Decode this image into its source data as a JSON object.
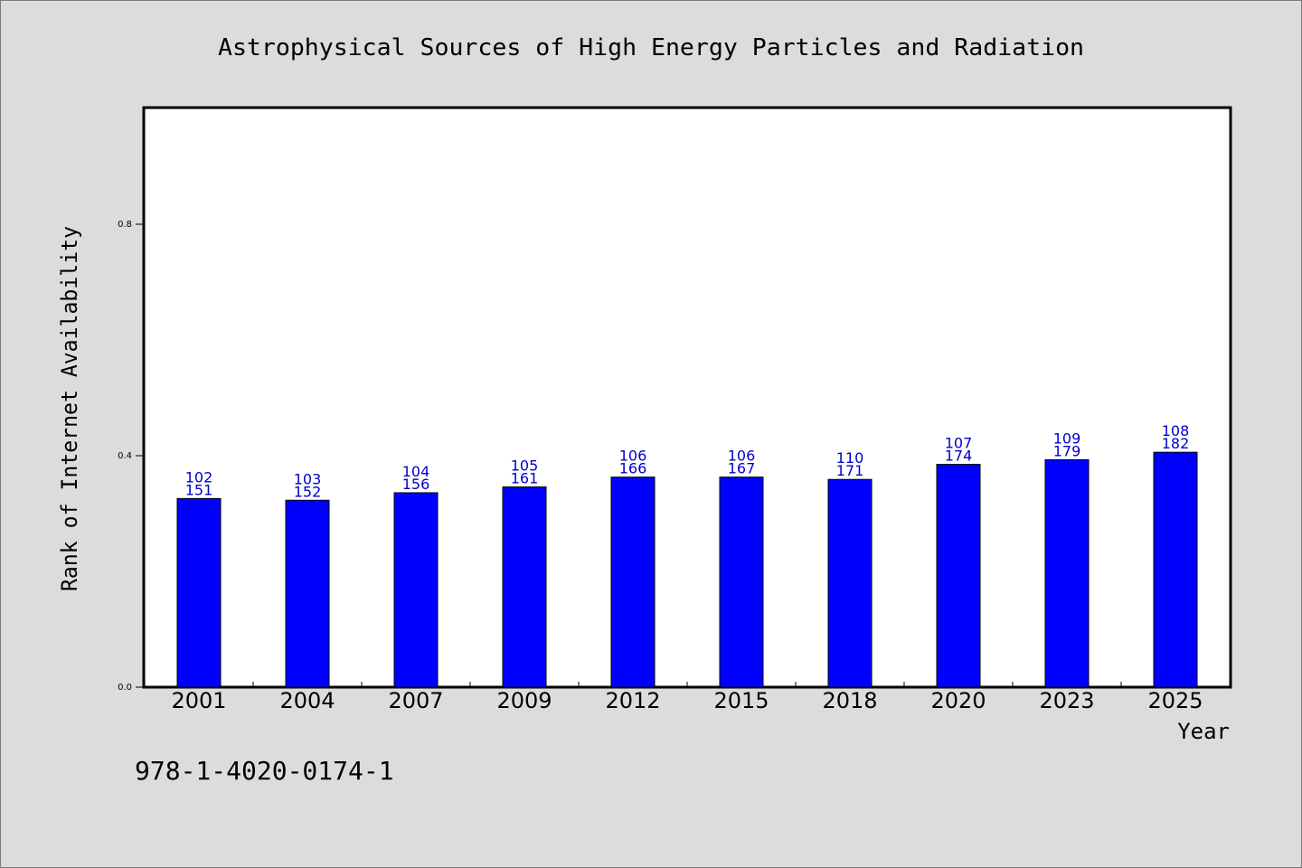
{
  "chart_data": {
    "type": "bar",
    "title": "Astrophysical Sources of High Energy Particles and Radiation",
    "xlabel": "Year",
    "ylabel": "Rank of Internet Availability",
    "categories": [
      "2001",
      "2004",
      "2007",
      "2009",
      "2012",
      "2015",
      "2018",
      "2020",
      "2023",
      "2025"
    ],
    "values": [
      0.326,
      0.323,
      0.336,
      0.346,
      0.363,
      0.363,
      0.359,
      0.385,
      0.393,
      0.406
    ],
    "label_top": [
      "102",
      "103",
      "104",
      "105",
      "106",
      "106",
      "110",
      "107",
      "109",
      "108"
    ],
    "label_bottom": [
      "151",
      "152",
      "156",
      "161",
      "166",
      "167",
      "171",
      "174",
      "179",
      "182"
    ],
    "ylim": [
      0,
      1.0
    ],
    "yticks": [
      0.0,
      0.4,
      0.8
    ],
    "ytick_labels": [
      "0.0",
      "0.4",
      "0.8"
    ],
    "grid": false,
    "bar_color": "#0000ff",
    "label_color": "#0000cc",
    "annotation": "978-1-4020-0174-1"
  }
}
